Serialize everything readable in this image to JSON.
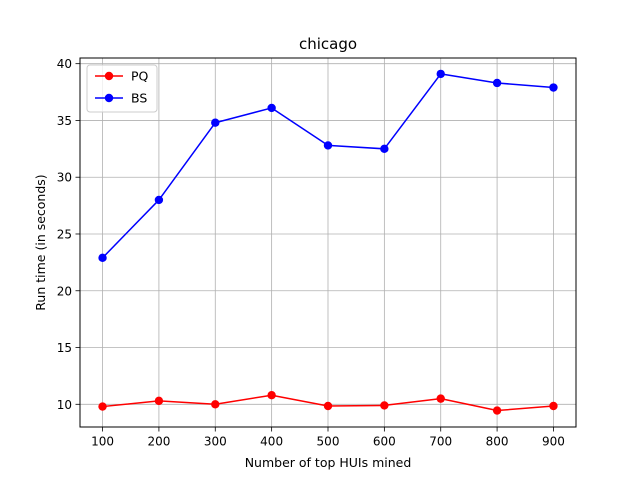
{
  "chart_data": {
    "type": "line",
    "title": "chicago",
    "xlabel": "Number of top HUIs mined",
    "ylabel": "Run time (in seconds)",
    "x": [
      100,
      200,
      300,
      400,
      500,
      600,
      700,
      800,
      900
    ],
    "x_ticks": [
      100,
      200,
      300,
      400,
      500,
      600,
      700,
      800,
      900
    ],
    "y_ticks": [
      10,
      15,
      20,
      25,
      30,
      35,
      40
    ],
    "xlim": [
      60,
      940
    ],
    "ylim": [
      8.0,
      40.5
    ],
    "grid": true,
    "legend_position": "top-left",
    "series": [
      {
        "name": "PQ",
        "color": "#ff0000",
        "marker": "circle",
        "values": [
          9.8,
          10.3,
          10.0,
          10.8,
          9.85,
          9.9,
          10.5,
          9.45,
          9.85
        ]
      },
      {
        "name": "BS",
        "color": "#0000ff",
        "marker": "circle",
        "values": [
          22.9,
          28.0,
          34.8,
          36.1,
          32.8,
          32.5,
          39.1,
          38.3,
          37.9
        ]
      }
    ]
  }
}
